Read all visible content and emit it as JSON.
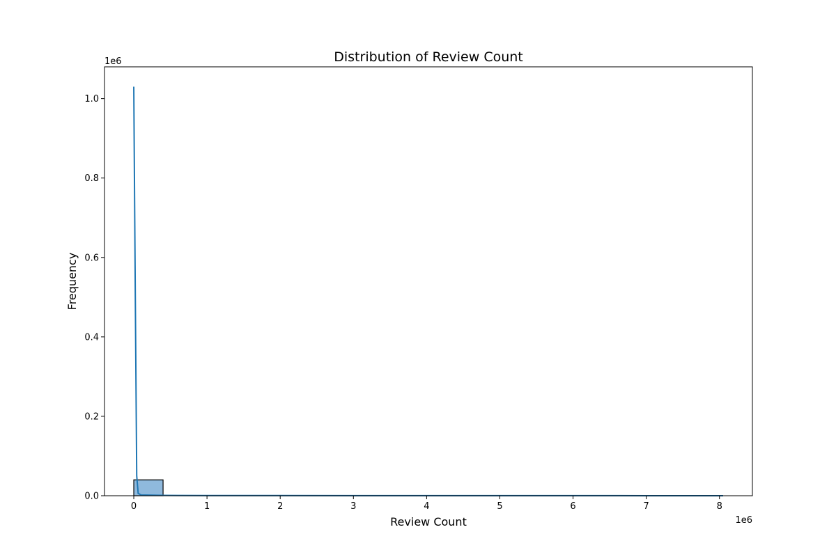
{
  "chart_data": {
    "type": "bar",
    "title": "Distribution of Review Count",
    "xlabel": "Review Count",
    "ylabel": "Frequency",
    "x_offset_label": "1e6",
    "y_offset_label": "1e6",
    "xlim": [
      -400000,
      8450000
    ],
    "ylim": [
      0,
      1080000
    ],
    "xticks": [
      0,
      1000000,
      2000000,
      3000000,
      4000000,
      5000000,
      6000000,
      7000000,
      8000000
    ],
    "xtick_labels": [
      "0",
      "1",
      "2",
      "3",
      "4",
      "5",
      "6",
      "7",
      "8"
    ],
    "yticks": [
      0,
      200000,
      400000,
      600000,
      800000,
      1000000
    ],
    "ytick_labels": [
      "0.0",
      "0.2",
      "0.4",
      "0.6",
      "0.8",
      "1.0"
    ],
    "bins": [
      {
        "x0": 0,
        "x1": 400000,
        "count": 40000
      }
    ],
    "kde": {
      "x": [
        0,
        20000,
        40000,
        60000,
        100000,
        400000,
        1000000,
        2000000,
        3000000,
        4000000,
        5000000,
        6000000,
        7000000,
        8050000
      ],
      "y": [
        1030000,
        520000,
        50000,
        6000,
        2000,
        800,
        500,
        400,
        300,
        250,
        200,
        150,
        100,
        50
      ]
    },
    "colors": {
      "bar_fill": "#8fb9dd",
      "bar_edge": "#000000",
      "kde_line": "#1f77b4"
    },
    "grid": false,
    "legend": "none"
  }
}
